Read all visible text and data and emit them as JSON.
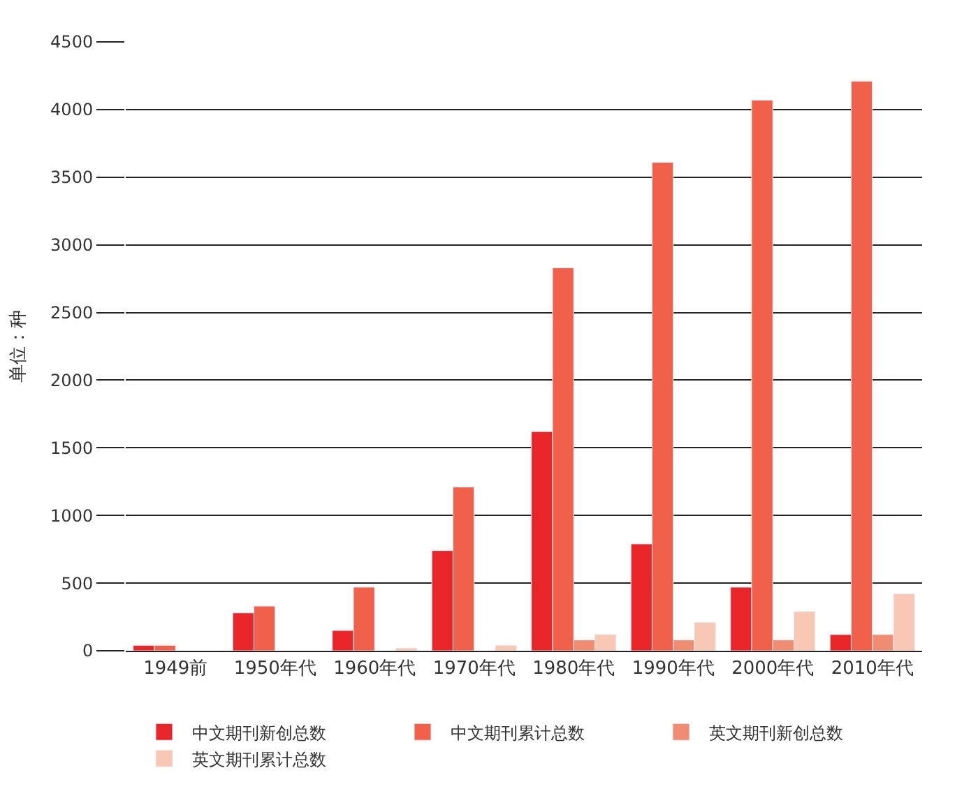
{
  "chart_data": {
    "type": "bar",
    "ylabel": "单位：种",
    "categories": [
      "1949前",
      "1950年代",
      "1960年代",
      "1970年代",
      "1980年代",
      "1990年代",
      "2000年代",
      "2010年代"
    ],
    "series": [
      {
        "name": "中文期刊新创总数",
        "color": "#e8262a",
        "values": [
          40,
          280,
          150,
          740,
          1620,
          790,
          470,
          120
        ]
      },
      {
        "name": "中文期刊累计总数",
        "color": "#f0604a",
        "values": [
          40,
          330,
          470,
          1210,
          2830,
          3610,
          4070,
          4210
        ]
      },
      {
        "name": "英文期刊新创总数",
        "color": "#f08c72",
        "values": [
          null,
          null,
          null,
          null,
          80,
          80,
          80,
          120
        ]
      },
      {
        "name": "英文期刊累计总数",
        "color": "#f8c8b4",
        "values": [
          null,
          null,
          20,
          40,
          120,
          210,
          290,
          420
        ]
      }
    ],
    "ylim": [
      0,
      4500
    ],
    "yticks": [
      0,
      500,
      1000,
      1500,
      2000,
      2500,
      3000,
      3500,
      4000,
      4500
    ],
    "grid": "y",
    "legend": "bottom"
  }
}
